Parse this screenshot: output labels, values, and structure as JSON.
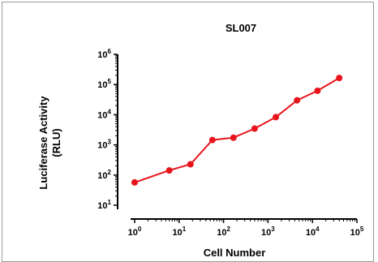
{
  "chart_data": {
    "type": "line",
    "title": "SL007",
    "xlabel": "Cell Number",
    "ylabel": "Luciferase Activity",
    "ylabel_unit": "(RLU)",
    "x_scale": "log",
    "y_scale": "log",
    "xlim": [
      1,
      100000
    ],
    "ylim": [
      10,
      1000000
    ],
    "x_ticks": [
      {
        "value": 1,
        "base": "10",
        "exp": "0"
      },
      {
        "value": 10,
        "base": "10",
        "exp": "1"
      },
      {
        "value": 100,
        "base": "10",
        "exp": "2"
      },
      {
        "value": 1000,
        "base": "10",
        "exp": "3"
      },
      {
        "value": 10000,
        "base": "10",
        "exp": "4"
      },
      {
        "value": 100000,
        "base": "10",
        "exp": "5"
      }
    ],
    "y_ticks": [
      {
        "value": 10,
        "base": "10",
        "exp": "1"
      },
      {
        "value": 100,
        "base": "10",
        "exp": "2"
      },
      {
        "value": 1000,
        "base": "10",
        "exp": "3"
      },
      {
        "value": 10000,
        "base": "10",
        "exp": "4"
      },
      {
        "value": 100000,
        "base": "10",
        "exp": "5"
      },
      {
        "value": 1000000,
        "base": "10",
        "exp": "6"
      }
    ],
    "grid": false,
    "series": [
      {
        "color": "#e8141b",
        "x": [
          1,
          6,
          18,
          56,
          167,
          500,
          1500,
          4500,
          13000,
          40000
        ],
        "y": [
          57,
          142,
          228,
          1450,
          1730,
          3470,
          8300,
          30000,
          62000,
          165000
        ]
      }
    ]
  }
}
